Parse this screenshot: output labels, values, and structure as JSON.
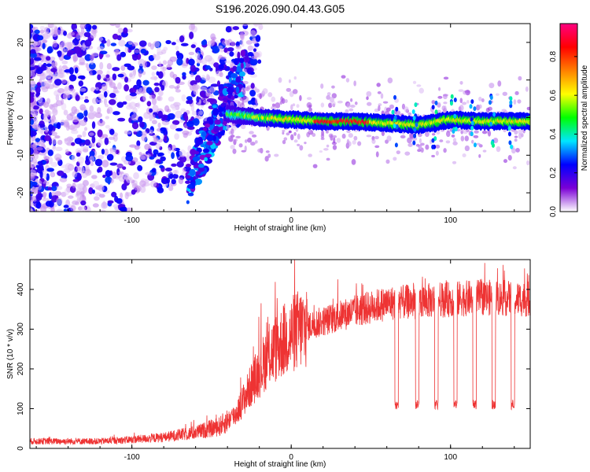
{
  "title": "S196.2026.090.04.43.G05",
  "chart_data": [
    {
      "type": "heatmap",
      "name": "spectrogram",
      "xlabel": "Height of straight line (km)",
      "ylabel": "Frequency (Hz)",
      "xlim": [
        -164,
        150
      ],
      "ylim": [
        -25,
        25
      ],
      "xticks": [
        -100,
        0,
        100
      ],
      "yticks": [
        -20,
        -10,
        0,
        10,
        20
      ],
      "description_ridge": {
        "frequency_offset_hz": [
          [
            -40,
            1.0
          ],
          [
            -20,
            0.0
          ],
          [
            0,
            -0.5
          ],
          [
            20,
            -1.0
          ],
          [
            40,
            -1.0
          ],
          [
            60,
            -1.5
          ],
          [
            80,
            -2.0
          ],
          [
            100,
            -0.5
          ],
          [
            120,
            -1.0
          ],
          [
            150,
            -1.0
          ]
        ]
      },
      "colorbar": {
        "label": "Normalized spectral amplitude",
        "range": [
          0.0,
          0.97
        ],
        "ticks": [
          0.0,
          0.2,
          0.4,
          0.6,
          0.8
        ],
        "tick_labels": [
          "0.0",
          "0.2",
          "0.4",
          "0.6",
          "0.8"
        ],
        "colors": [
          "#ffffff",
          "#7b00d6",
          "#0000ff",
          "#00e6ff",
          "#00ff00",
          "#ffff00",
          "#ff8000",
          "#ff0000",
          "#ff0080"
        ]
      }
    },
    {
      "type": "line",
      "name": "snr",
      "xlabel": "Height of straight line (km)",
      "ylabel": "SNR (10 * v/v)",
      "xlim": [
        -164,
        150
      ],
      "ylim": [
        0,
        475
      ],
      "xticks": [
        -100,
        0,
        100
      ],
      "yticks": [
        0,
        100,
        200,
        300,
        400
      ],
      "series": [
        {
          "name": "SNR",
          "color": "#ee3333",
          "envelope": [
            [
              -164,
              18
            ],
            [
              -120,
              18
            ],
            [
              -100,
              22
            ],
            [
              -80,
              28
            ],
            [
              -60,
              40
            ],
            [
              -45,
              55
            ],
            [
              -35,
              85
            ],
            [
              -25,
              160
            ],
            [
              -15,
              230
            ],
            [
              -5,
              270
            ],
            [
              5,
              300
            ],
            [
              20,
              320
            ],
            [
              40,
              345
            ],
            [
              60,
              365
            ],
            [
              80,
              370
            ],
            [
              100,
              375
            ],
            [
              120,
              380
            ],
            [
              150,
              375
            ]
          ],
          "drops_x_km": [
            65,
            78,
            90,
            102,
            114,
            126,
            138
          ],
          "drop_level": 110
        }
      ]
    }
  ]
}
